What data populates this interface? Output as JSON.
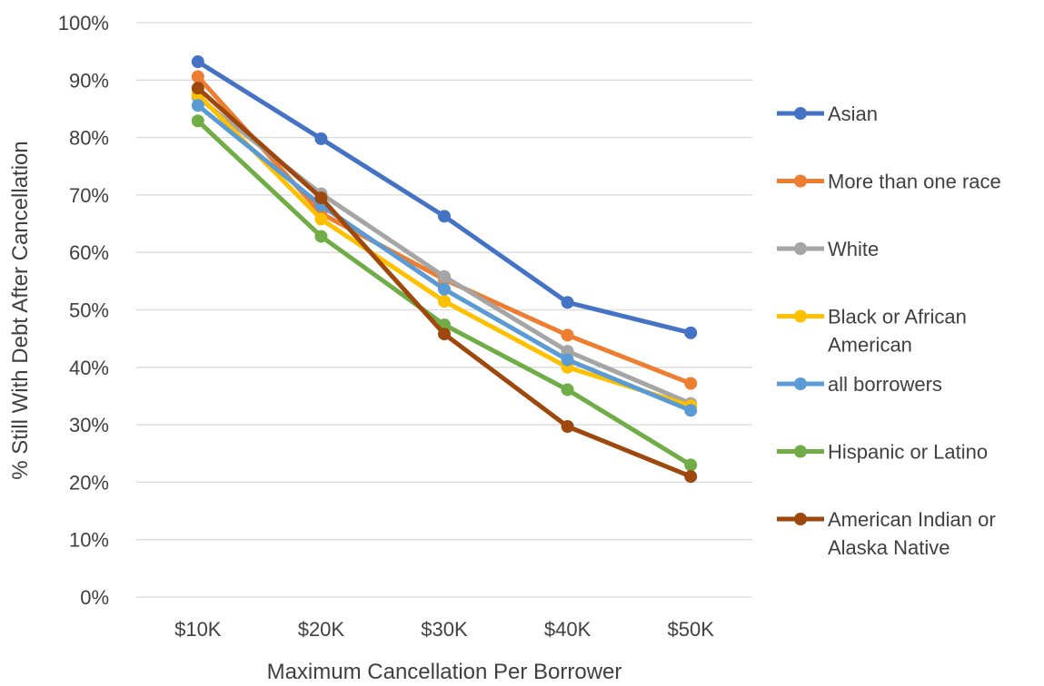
{
  "chart_data": {
    "type": "line",
    "title": "",
    "xlabel": "Maximum Cancellation Per Borrower",
    "ylabel": "% Still With Debt After Cancellation",
    "categories": [
      "$10K",
      "$20K",
      "$30K",
      "$40K",
      "$50K"
    ],
    "ylim": [
      0,
      1
    ],
    "yticks": [
      "0%",
      "10%",
      "20%",
      "30%",
      "40%",
      "50%",
      "60%",
      "70%",
      "80%",
      "90%",
      "100%"
    ],
    "grid": true,
    "legend_position": "right",
    "series": [
      {
        "name": "Asian",
        "color": "#4472C4",
        "values": [
          0.932,
          0.798,
          0.663,
          0.513,
          0.46
        ]
      },
      {
        "name": "More than one race",
        "color": "#ED7D31",
        "values": [
          0.906,
          0.668,
          0.553,
          0.456,
          0.372
        ]
      },
      {
        "name": "White",
        "color": "#A5A5A5",
        "values": [
          0.87,
          0.702,
          0.558,
          0.428,
          0.337
        ]
      },
      {
        "name": "Black or African American",
        "color": "#FFC000",
        "values": [
          0.875,
          0.658,
          0.515,
          0.4,
          0.333
        ]
      },
      {
        "name": "all borrowers",
        "color": "#5B9BD5",
        "values": [
          0.856,
          0.682,
          0.536,
          0.413,
          0.325
        ]
      },
      {
        "name": "Hispanic or Latino",
        "color": "#70AD47",
        "values": [
          0.829,
          0.628,
          0.474,
          0.361,
          0.23
        ]
      },
      {
        "name": "American Indian or Alaska Native",
        "color": "#9E480E",
        "values": [
          0.886,
          0.695,
          0.458,
          0.297,
          0.21
        ]
      }
    ]
  }
}
